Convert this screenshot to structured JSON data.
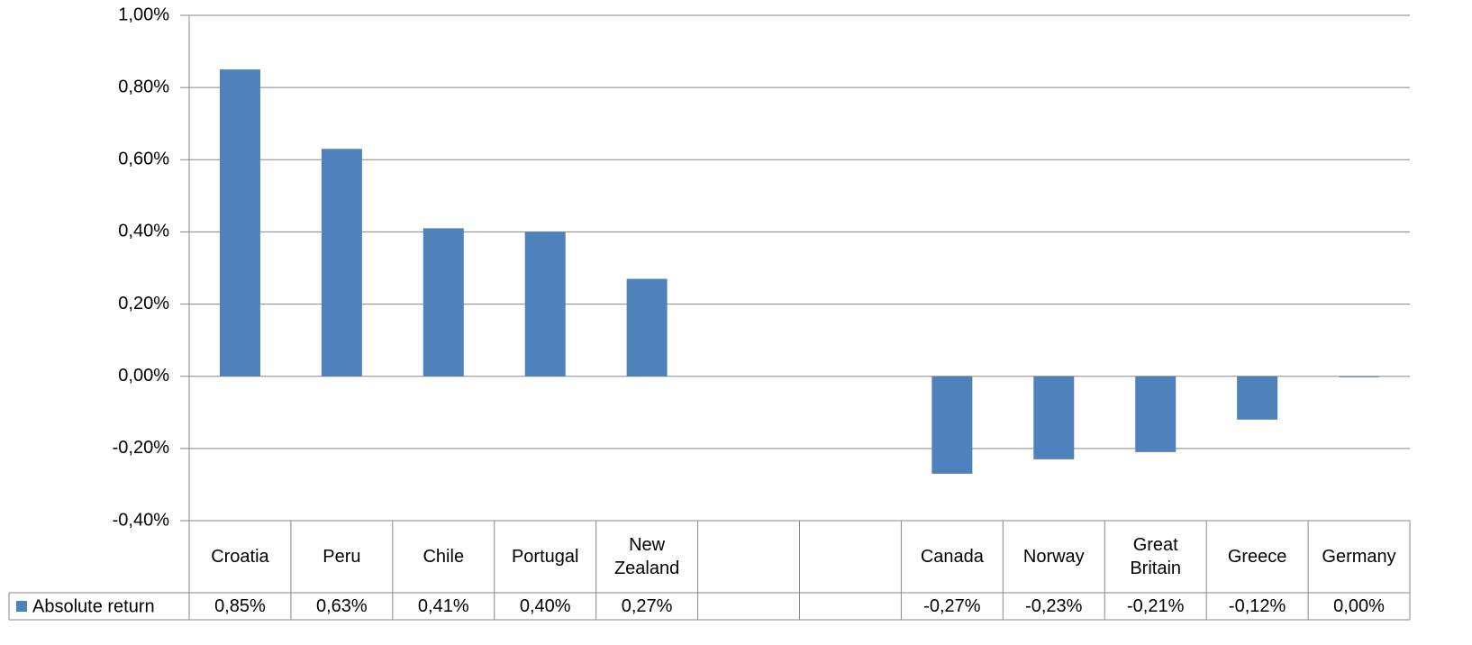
{
  "chart_data": {
    "type": "bar",
    "categories": [
      "Croatia",
      "Peru",
      "Chile",
      "Portugal",
      "New Zealand",
      null,
      null,
      "Canada",
      "Norway",
      "Great Britain",
      "Greece",
      "Germany"
    ],
    "series": [
      {
        "name": "Absolute return",
        "color": "#4f81bd",
        "values": [
          0.85,
          0.63,
          0.41,
          0.4,
          0.27,
          null,
          null,
          -0.27,
          -0.23,
          -0.21,
          -0.12,
          0.0
        ],
        "value_labels": [
          "0,85%",
          "0,63%",
          "0,41%",
          "0,40%",
          "0,27%",
          null,
          null,
          "-0,27%",
          "-0,23%",
          "-0,21%",
          "-0,12%",
          "0,00%"
        ]
      }
    ],
    "ylim": [
      -0.4,
      1.0
    ],
    "yticks": [
      {
        "value": -0.4,
        "label": "-0,40%"
      },
      {
        "value": -0.2,
        "label": "-0,20%"
      },
      {
        "value": 0,
        "label": "0,00%"
      },
      {
        "value": 0.2,
        "label": "0,20%"
      },
      {
        "value": 0.4,
        "label": "0,40%"
      },
      {
        "value": 0.6,
        "label": "0,60%"
      },
      {
        "value": 0.8,
        "label": "0,80%"
      },
      {
        "value": 1.0,
        "label": "1,00%"
      }
    ],
    "grid": true,
    "legend": "table"
  }
}
